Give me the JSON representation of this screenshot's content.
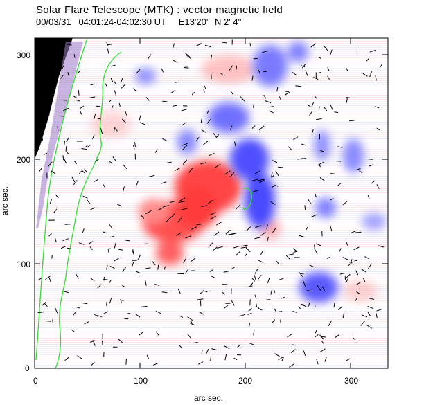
{
  "figure": {
    "title": "Solar Flare Telescope (MTK) : vector magnetic field",
    "subtitle": "00/03/31   04:01:24-04:02:30 UT     E13'20''  N 2' 4''",
    "xlabel": "arc sec.",
    "ylabel": "arc sec.",
    "xticks": [
      "0",
      "100",
      "200",
      "300"
    ],
    "yticks": [
      "0",
      "100",
      "200",
      "300"
    ],
    "colors": {
      "positive": "#ff3b3b",
      "negative": "#3b3bff",
      "limb": "#33dd33",
      "background": "#ffffff",
      "offdisk": "#000000"
    }
  }
}
